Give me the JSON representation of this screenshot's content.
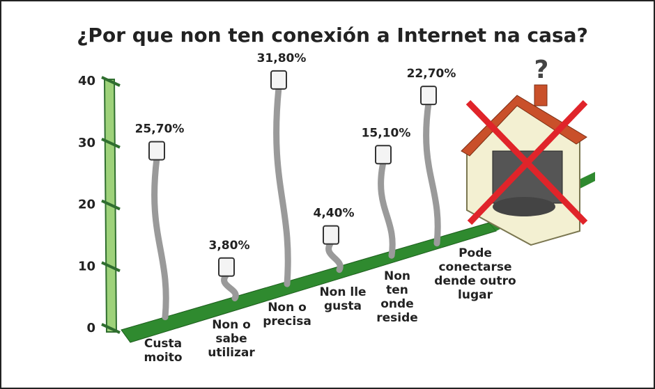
{
  "chart_data": {
    "type": "bar",
    "title": "¿Por que non ten conexión a Internet na casa?",
    "categories": [
      "Custa\nmoito",
      "Non o\nsabe\nutilizar",
      "Non o\nprecisa",
      "Non lle\ngusta",
      "Non\nten\nonde\nreside",
      "Pode\nconectarse\ndende outro\nlugar"
    ],
    "values": [
      25.7,
      3.8,
      31.8,
      4.4,
      15.1,
      22.7
    ],
    "value_labels": [
      "25,70%",
      "3,80%",
      "31,80%",
      "4,40%",
      "15,10%",
      "22,70%"
    ],
    "color": "#9a9a9a",
    "ylim": [
      0,
      40
    ],
    "yticks": [
      0,
      10,
      20,
      30,
      40
    ]
  }
}
